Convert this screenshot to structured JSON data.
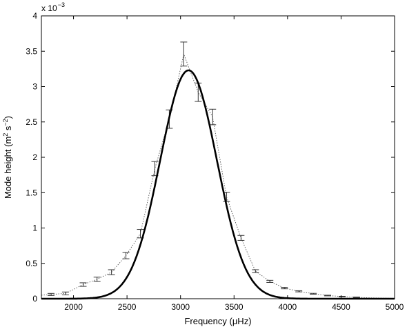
{
  "chart_data": {
    "type": "scatter",
    "title": "",
    "xlabel": "Frequency (μHz)",
    "ylabel_main": "Mode height (m",
    "ylabel_sup1": "2",
    "ylabel_mid": " s",
    "ylabel_sup2": "−2",
    "ylabel_end": ")",
    "y_exponent_base": "x 10",
    "y_exponent_power": "−3",
    "xlim": [
      1700,
      5000
    ],
    "ylim": [
      0,
      4
    ],
    "x_ticks": [
      2000,
      2500,
      3000,
      3500,
      4000,
      4500,
      5000
    ],
    "x_tick_labels": [
      "2000",
      "2500",
      "3000",
      "3500",
      "4000",
      "4500",
      "5000"
    ],
    "y_ticks": [
      0,
      0.5,
      1,
      1.5,
      2,
      2.5,
      3,
      3.5,
      4
    ],
    "y_tick_labels": [
      "0",
      "0.5",
      "1",
      "1.5",
      "2",
      "2.5",
      "3",
      "3.5",
      "4"
    ],
    "grid": false,
    "series": [
      {
        "kind": "errorbar",
        "x": [
          1790,
          1925,
          2090,
          2220,
          2355,
          2490,
          2625,
          2760,
          2895,
          3030,
          3165,
          3300,
          3430,
          3565,
          3700,
          3835,
          3970,
          4105,
          4240,
          4375,
          4510,
          4645
        ],
        "y": [
          0.06,
          0.075,
          0.2,
          0.275,
          0.375,
          0.61,
          0.92,
          1.84,
          2.54,
          3.46,
          2.92,
          2.57,
          1.44,
          0.86,
          0.39,
          0.245,
          0.15,
          0.105,
          0.07,
          0.045,
          0.03,
          0.02
        ],
        "err": [
          0.015,
          0.02,
          0.025,
          0.03,
          0.035,
          0.045,
          0.06,
          0.1,
          0.13,
          0.17,
          0.13,
          0.11,
          0.065,
          0.035,
          0.02,
          0.015,
          0.01,
          0.008,
          0.006,
          0.005,
          0.004,
          0.004
        ],
        "color": "#333333"
      },
      {
        "kind": "dotted-line",
        "x": [
          1700,
          1790,
          1925,
          2090,
          2220,
          2355,
          2490,
          2625,
          2760,
          2895,
          3030,
          3165,
          3300,
          3430,
          3565,
          3700,
          3835,
          3970,
          4105,
          4240,
          4375,
          4510,
          4645,
          4780,
          5000
        ],
        "y": [
          0.05,
          0.06,
          0.075,
          0.2,
          0.275,
          0.375,
          0.61,
          0.92,
          1.84,
          2.54,
          3.46,
          2.92,
          2.57,
          1.44,
          0.86,
          0.39,
          0.245,
          0.15,
          0.105,
          0.07,
          0.045,
          0.03,
          0.02,
          0.012,
          0.005
        ],
        "color": "#555555"
      },
      {
        "kind": "gaussian-fit",
        "center": 3075,
        "height": 3.23,
        "sigma": 265,
        "color": "#000000"
      }
    ]
  }
}
